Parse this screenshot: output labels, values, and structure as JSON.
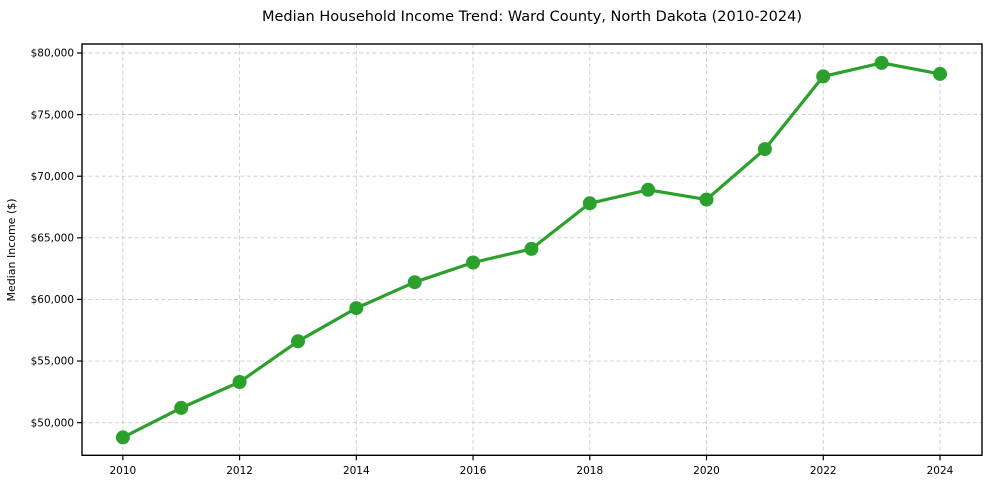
{
  "figure": {
    "background": "#ffffff"
  },
  "chart_data": {
    "type": "line",
    "title": "Median Household Income Trend: Ward County, North Dakota (2010-2024)",
    "xlabel": "",
    "ylabel": "Median Income ($)",
    "x": [
      2010,
      2011,
      2012,
      2013,
      2014,
      2015,
      2016,
      2017,
      2018,
      2019,
      2020,
      2021,
      2022,
      2023,
      2024
    ],
    "values": [
      48800,
      51200,
      53300,
      56600,
      59300,
      61400,
      63000,
      64100,
      67800,
      68900,
      68100,
      72200,
      78100,
      79200,
      78300
    ],
    "xlim": [
      2009.3,
      2024.72
    ],
    "ylim": [
      47350,
      80730
    ],
    "xticks": [
      2010,
      2012,
      2014,
      2016,
      2018,
      2020,
      2022,
      2024
    ],
    "xtick_labels": [
      "2010",
      "2012",
      "2014",
      "2016",
      "2018",
      "2020",
      "2022",
      "2024"
    ],
    "yticks": [
      50000,
      55000,
      60000,
      65000,
      70000,
      75000,
      80000
    ],
    "ytick_labels": [
      "$50,000",
      "$55,000",
      "$60,000",
      "$65,000",
      "$70,000",
      "$75,000",
      "$80,000"
    ],
    "grid": "both-dashed",
    "legend": "none",
    "line_color": "#2ca02c",
    "marker": "circle",
    "marker_color": "#2ca02c",
    "grid_color": "#cccccc",
    "axis_color": "#000000",
    "text_color": "#000000"
  }
}
